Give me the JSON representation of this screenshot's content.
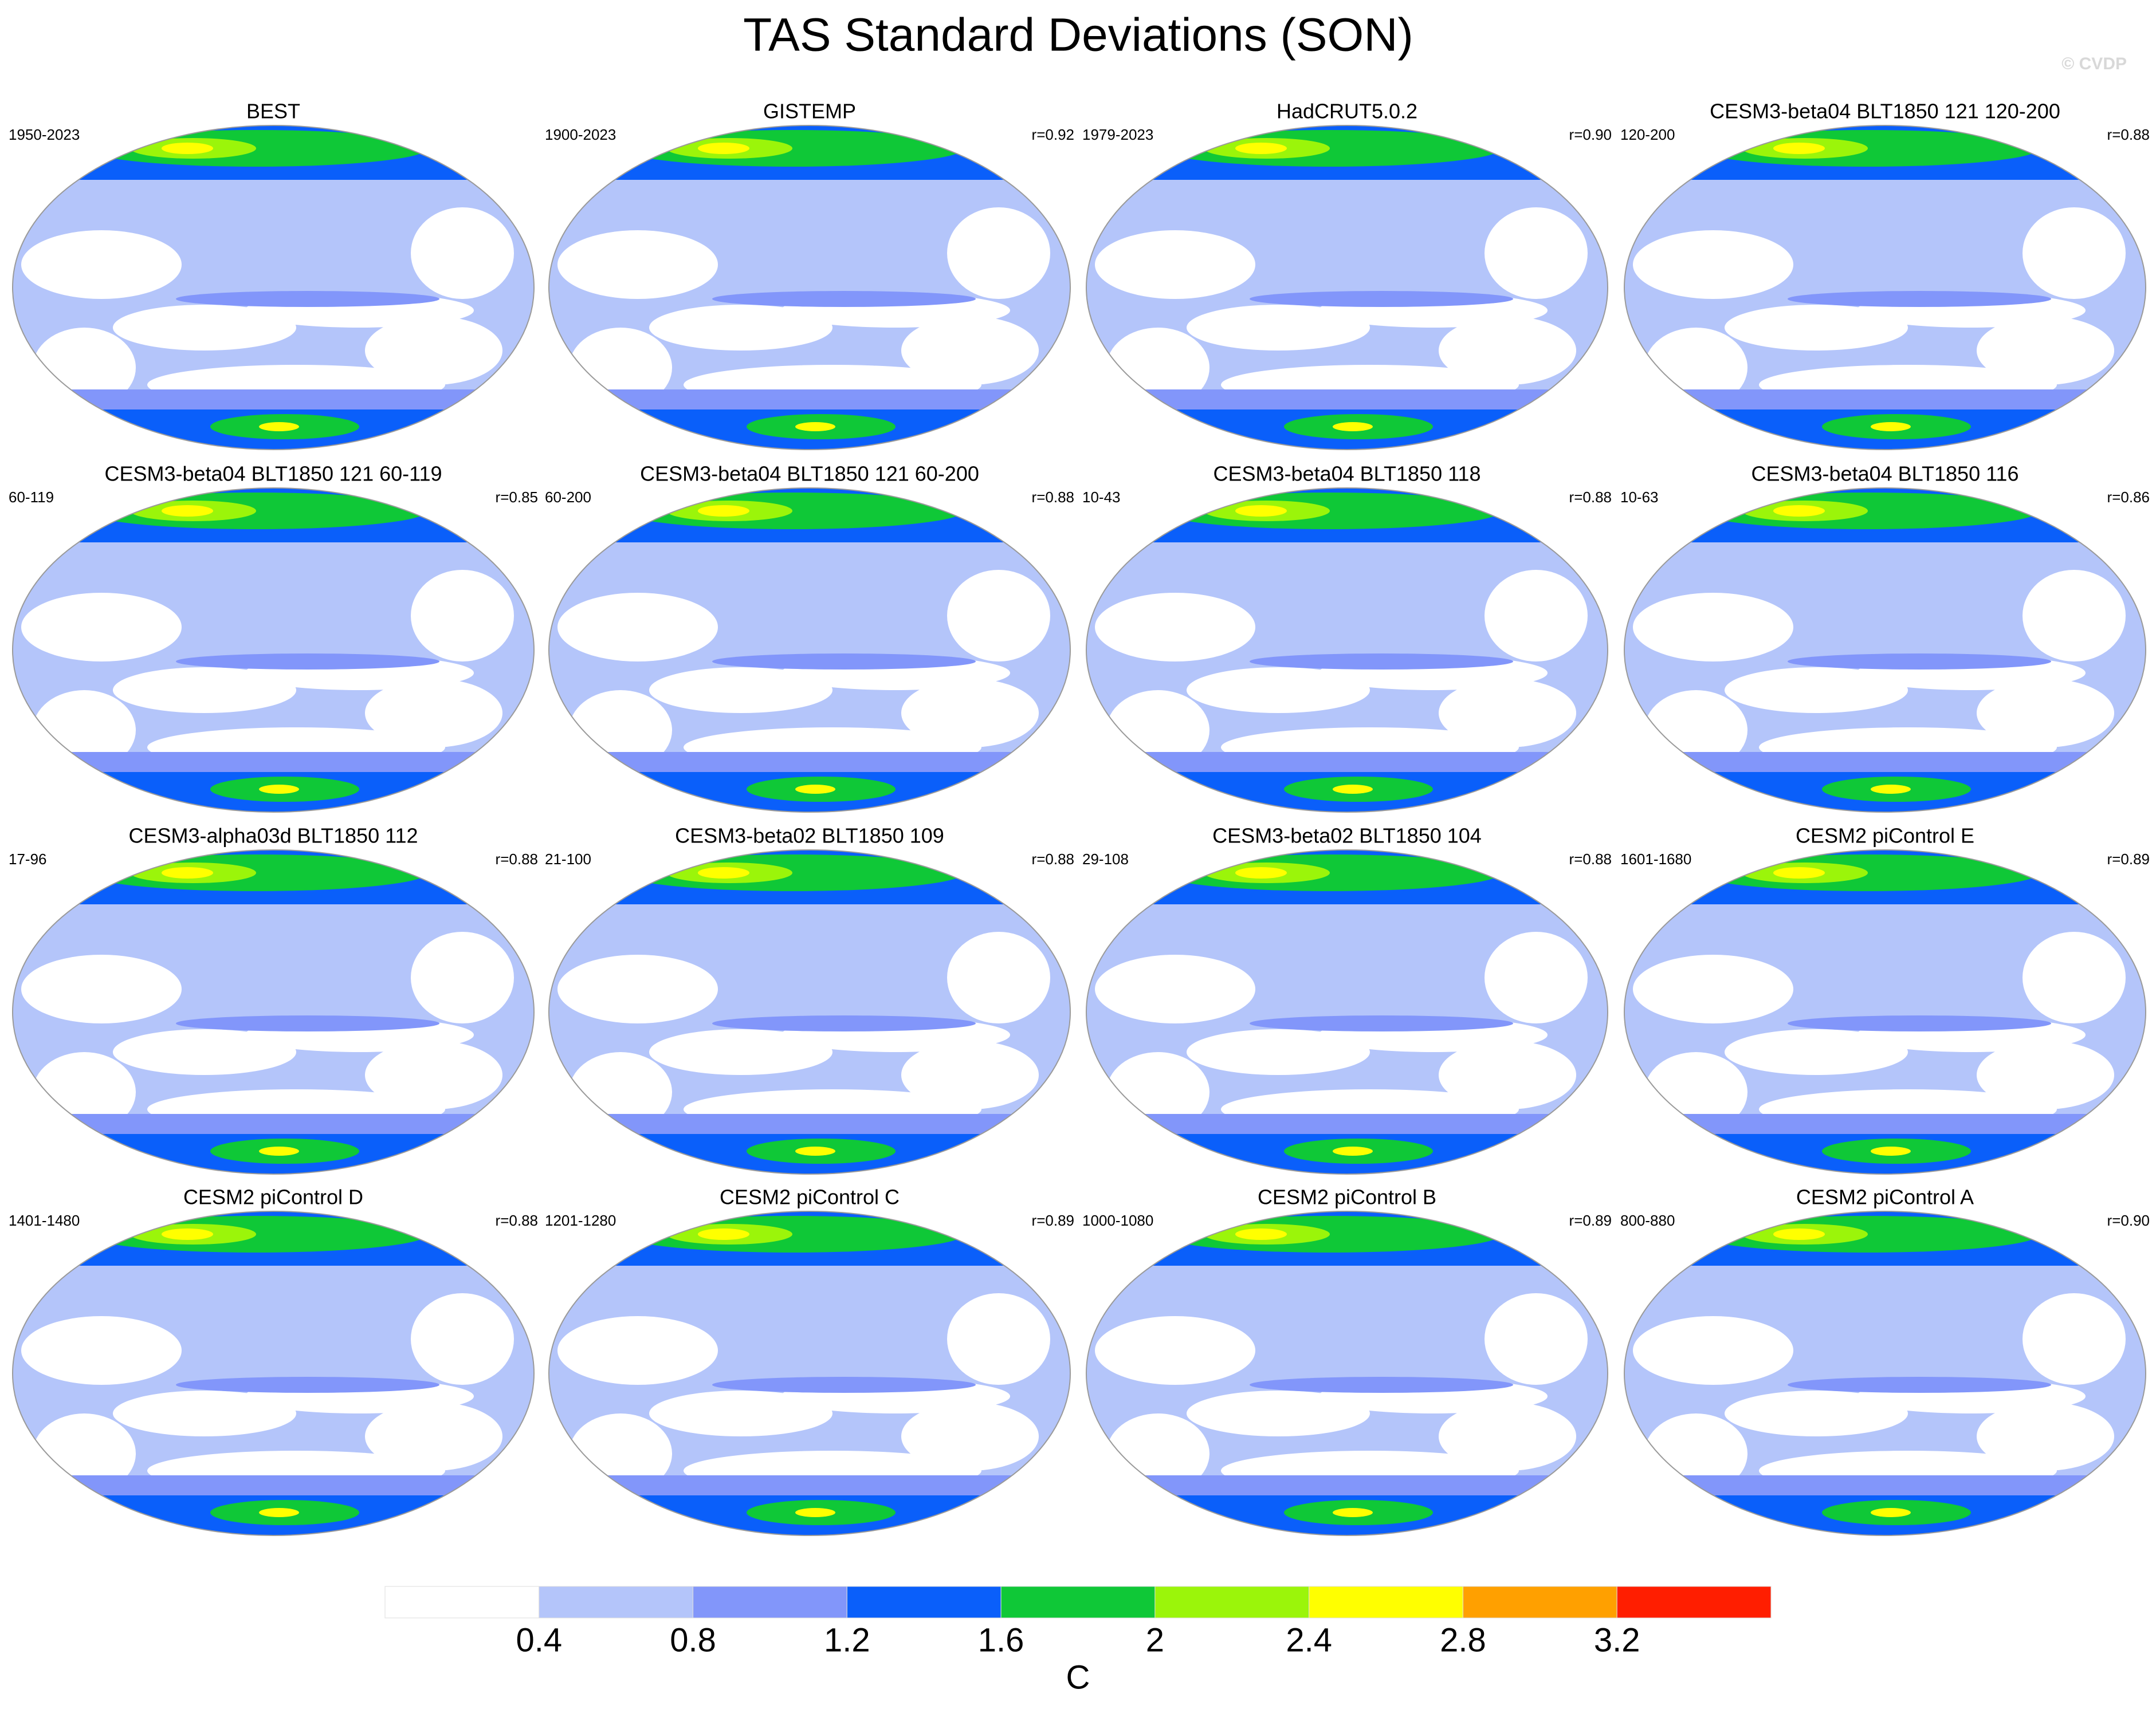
{
  "title": "TAS Standard Deviations (SON)",
  "watermark": "© CVDP",
  "panels": [
    {
      "title": "BEST",
      "period": "1950-2023"
    },
    {
      "title": "GISTEMP",
      "period": "1900-2023",
      "r": "r=0.92"
    },
    {
      "title": "HadCRUT5.0.2",
      "period": "1979-2023",
      "r": "r=0.90"
    },
    {
      "title": "CESM3-beta04 BLT1850 121 120-200",
      "period": "120-200",
      "r": "r=0.88"
    },
    {
      "title": "CESM3-beta04 BLT1850 121 60-119",
      "period": "60-119",
      "r": "r=0.85"
    },
    {
      "title": "CESM3-beta04 BLT1850 121 60-200",
      "period": "60-200",
      "r": "r=0.88"
    },
    {
      "title": "CESM3-beta04 BLT1850 118",
      "period": "10-43",
      "r": "r=0.88"
    },
    {
      "title": "CESM3-beta04 BLT1850 116",
      "period": "10-63",
      "r": "r=0.86"
    },
    {
      "title": "CESM3-alpha03d BLT1850 112",
      "period": "17-96",
      "r": "r=0.88"
    },
    {
      "title": "CESM3-beta02 BLT1850 109",
      "period": "21-100",
      "r": "r=0.88"
    },
    {
      "title": "CESM3-beta02 BLT1850 104",
      "period": "29-108",
      "r": "r=0.88"
    },
    {
      "title": "CESM2 piControl E",
      "period": "1601-1680",
      "r": "r=0.89"
    },
    {
      "title": "CESM2 piControl D",
      "period": "1401-1480",
      "r": "r=0.88"
    },
    {
      "title": "CESM2 piControl C",
      "period": "1201-1280",
      "r": "r=0.89"
    },
    {
      "title": "CESM2 piControl B",
      "period": "1000-1080",
      "r": "r=0.89"
    },
    {
      "title": "CESM2 piControl A",
      "period": "800-880",
      "r": "r=0.90"
    }
  ],
  "colorbar": {
    "levels": [
      0.4,
      0.8,
      1.2,
      1.6,
      2,
      2.4,
      2.8,
      3.2
    ],
    "colors": [
      "#ffffff",
      "#b4c5fa",
      "#8296fa",
      "#0a5ffa",
      "#0fc837",
      "#9bf50a",
      "#ffff00",
      "#ffa000",
      "#ff1e00"
    ],
    "label": "C"
  }
}
